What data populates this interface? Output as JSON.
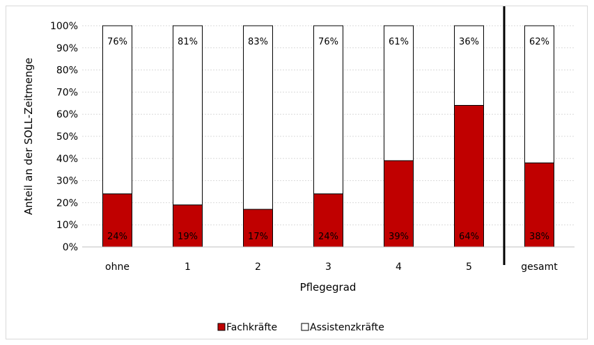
{
  "chart_data": {
    "type": "bar",
    "stacked": true,
    "percent_stacked": true,
    "categories": [
      "ohne",
      "1",
      "2",
      "3",
      "4",
      "5",
      "gesamt"
    ],
    "series": [
      {
        "name": "Fachkräfte",
        "color": "#c00000",
        "values": [
          24,
          19,
          17,
          24,
          39,
          64,
          38
        ],
        "labels": [
          "24%",
          "19%",
          "17%",
          "24%",
          "39%",
          "64%",
          "38%"
        ]
      },
      {
        "name": "Assistenzkräfte",
        "color": "#ffffff",
        "values": [
          76,
          81,
          83,
          76,
          61,
          36,
          62
        ],
        "labels": [
          "76%",
          "81%",
          "83%",
          "76%",
          "61%",
          "36%",
          "62%"
        ]
      }
    ],
    "xlabel": "Pflegegrad",
    "ylabel": "Anteil an der SOLL-Zeitmenge",
    "ylim": [
      0,
      100
    ],
    "yticks": [
      "0%",
      "10%",
      "20%",
      "30%",
      "40%",
      "50%",
      "60%",
      "70%",
      "80%",
      "90%",
      "100%"
    ],
    "grid": true,
    "legend_position": "bottom",
    "separator_before_category": "gesamt"
  }
}
